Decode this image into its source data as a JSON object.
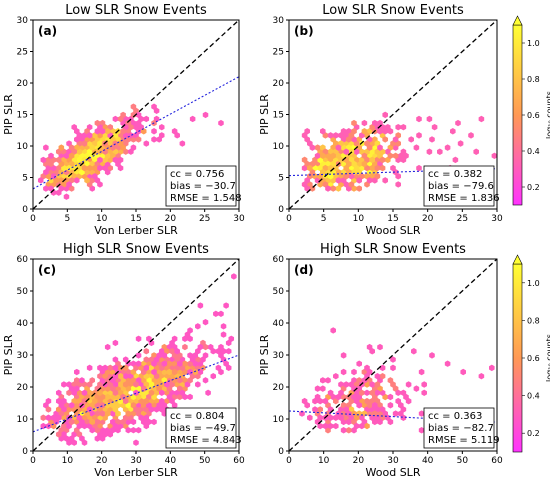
{
  "chart_data": [
    {
      "type": "scatter",
      "panel_label": "(a)",
      "title": "Low SLR Snow Events",
      "xlabel": "Von Lerber SLR",
      "ylabel": "PIP SLR",
      "xlim": [
        0,
        30
      ],
      "ylim": [
        0,
        30
      ],
      "xticks": [
        0,
        5,
        10,
        15,
        20,
        25,
        30
      ],
      "yticks": [
        0,
        5,
        10,
        15,
        20,
        25,
        30
      ],
      "one_to_one_line": true,
      "fit_line": [
        [
          0,
          3.2
        ],
        [
          30,
          21
        ]
      ],
      "stats": [
        "cc = 0.756",
        "bias = −30.7",
        "RMSE = 1.548"
      ],
      "cloud": {
        "center": [
          8,
          8.5
        ],
        "spread": [
          3.5,
          2.8
        ],
        "corr": 0.75,
        "x_range": [
          1,
          27
        ],
        "y_range": [
          2,
          17
        ],
        "n": 650,
        "hot": 0.55
      },
      "outliers": [
        [
          16,
          14
        ],
        [
          19,
          13
        ],
        [
          21,
          12
        ],
        [
          23,
          14
        ],
        [
          25,
          15
        ],
        [
          27,
          13.5
        ],
        [
          18,
          15.5
        ],
        [
          14,
          16
        ],
        [
          20,
          12.5
        ],
        [
          13,
          15
        ],
        [
          22,
          10.5
        ],
        [
          17,
          11
        ]
      ]
    },
    {
      "type": "scatter",
      "panel_label": "(b)",
      "title": "Low SLR Snow Events",
      "xlabel": "Wood SLR",
      "ylabel": "PIP SLR",
      "xlim": [
        0,
        30
      ],
      "ylim": [
        0,
        30
      ],
      "xticks": [
        0,
        5,
        10,
        15,
        20,
        25,
        30
      ],
      "yticks": [
        0,
        5,
        10,
        15,
        20,
        25,
        30
      ],
      "one_to_one_line": true,
      "fit_line": [
        [
          0,
          5.3
        ],
        [
          30,
          6.4
        ]
      ],
      "stats": [
        "cc = 0.382",
        "bias = −79.6",
        "RMSE = 1.836"
      ],
      "cloud": {
        "center": [
          8,
          7.5
        ],
        "spread": [
          4,
          2.6
        ],
        "corr": 0.35,
        "x_range": [
          2,
          29
        ],
        "y_range": [
          3,
          16
        ],
        "n": 650,
        "hot": 0.5
      },
      "outliers": [
        [
          22,
          9
        ],
        [
          24,
          8
        ],
        [
          26,
          12
        ],
        [
          28,
          14.5
        ],
        [
          20,
          11
        ],
        [
          23,
          6.5
        ],
        [
          25,
          10.5
        ],
        [
          27,
          9
        ],
        [
          21,
          13
        ],
        [
          19,
          14
        ],
        [
          24,
          13.5
        ],
        [
          29,
          8.5
        ]
      ]
    },
    {
      "type": "scatter",
      "panel_label": "(c)",
      "title": "High SLR Snow Events",
      "xlabel": "Von Lerber SLR",
      "ylabel": "PIP SLR",
      "xlim": [
        0,
        60
      ],
      "ylim": [
        0,
        60
      ],
      "xticks": [
        0,
        10,
        20,
        30,
        40,
        50,
        60
      ],
      "yticks": [
        0,
        10,
        20,
        30,
        40,
        50,
        60
      ],
      "one_to_one_line": true,
      "fit_line": [
        [
          0,
          6
        ],
        [
          60,
          30
        ]
      ],
      "stats": [
        "cc = 0.804",
        "bias = −49.7",
        "RMSE = 4.843"
      ],
      "cloud": {
        "center": [
          27,
          18
        ],
        "spread": [
          12,
          7
        ],
        "corr": 0.7,
        "x_range": [
          2,
          59
        ],
        "y_range": [
          3,
          45
        ],
        "n": 1100,
        "hot": 0.5
      },
      "outliers": [
        [
          52,
          43
        ],
        [
          56,
          46
        ],
        [
          58,
          54
        ],
        [
          55,
          39
        ],
        [
          50,
          40
        ],
        [
          48,
          45
        ],
        [
          45,
          38
        ],
        [
          57,
          35
        ]
      ]
    },
    {
      "type": "scatter",
      "panel_label": "(d)",
      "title": "High SLR Snow Events",
      "xlabel": "Wood SLR",
      "ylabel": "PIP SLR",
      "xlim": [
        0,
        60
      ],
      "ylim": [
        0,
        60
      ],
      "xticks": [
        0,
        10,
        20,
        30,
        40,
        50,
        60
      ],
      "yticks": [
        0,
        10,
        20,
        30,
        40,
        50,
        60
      ],
      "one_to_one_line": true,
      "fit_line": [
        [
          0,
          12.5
        ],
        [
          60,
          9
        ]
      ],
      "stats": [
        "cc = 0.363",
        "bias = −82.7",
        "RMSE = 5.119"
      ],
      "cloud": {
        "center": [
          20,
          15
        ],
        "spread": [
          8,
          6
        ],
        "corr": 0.3,
        "x_range": [
          3,
          58
        ],
        "y_range": [
          6,
          35
        ],
        "n": 240,
        "hot": 0.15
      },
      "outliers": [
        [
          12,
          38
        ],
        [
          15,
          30
        ],
        [
          25,
          33
        ],
        [
          30,
          28
        ],
        [
          40,
          30
        ],
        [
          45,
          27
        ],
        [
          50,
          25
        ],
        [
          55,
          24
        ],
        [
          58,
          26
        ],
        [
          36,
          31
        ],
        [
          22,
          32
        ]
      ]
    }
  ],
  "colorbars": [
    {
      "label": "log₁₀ counts",
      "ticks": [
        0.2,
        0.4,
        0.6,
        0.8,
        1.0
      ],
      "range": [
        0.1,
        1.1
      ]
    },
    {
      "label": "log₁₀ counts",
      "ticks": [
        0.2,
        0.4,
        0.6,
        0.8,
        1.0
      ],
      "range": [
        0.1,
        1.1
      ]
    }
  ],
  "colormap": {
    "low": "#ff33ff",
    "mid": "#ff9955",
    "high": "#ffff33"
  }
}
